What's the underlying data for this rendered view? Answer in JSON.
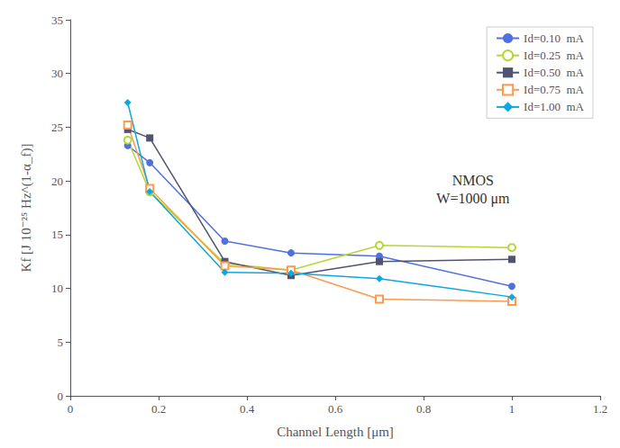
{
  "chart_data": {
    "type": "line",
    "x_label": "Channel Length [μm]",
    "y_label": "Kf [J 10⁻²⁵ Hz^(1-α_f)]",
    "annotation": "NMOS\nW=1000 μm",
    "x": [
      0.13,
      0.18,
      0.35,
      0.5,
      0.7,
      1.0
    ],
    "series": [
      {
        "name": "Id=0.10  mA",
        "marker": "circle",
        "values": [
          23.3,
          21.7,
          14.4,
          13.3,
          13.0,
          10.2
        ]
      },
      {
        "name": "Id=0.25  mA",
        "marker": "circle-open",
        "values": [
          23.8,
          19.0,
          12.3,
          11.7,
          14.0,
          13.8
        ]
      },
      {
        "name": "Id=0.50  mA",
        "marker": "square",
        "values": [
          24.8,
          24.0,
          12.5,
          11.2,
          12.5,
          12.7
        ]
      },
      {
        "name": "Id=0.75  mA",
        "marker": "square-open",
        "values": [
          25.2,
          19.3,
          12.1,
          11.7,
          9.0,
          8.8
        ]
      },
      {
        "name": "Id=1.00  mA",
        "marker": "diamond",
        "values": [
          27.3,
          19.0,
          11.5,
          11.4,
          10.9,
          9.2
        ]
      }
    ],
    "xlim": [
      0,
      1.2
    ],
    "ylim": [
      0,
      35
    ],
    "xticks": [
      0,
      0.2,
      0.4,
      0.6,
      0.8,
      1.0,
      1.2
    ],
    "yticks": [
      0,
      5,
      10,
      15,
      20,
      25,
      30,
      35
    ],
    "grid": false,
    "legend": "upper right"
  }
}
